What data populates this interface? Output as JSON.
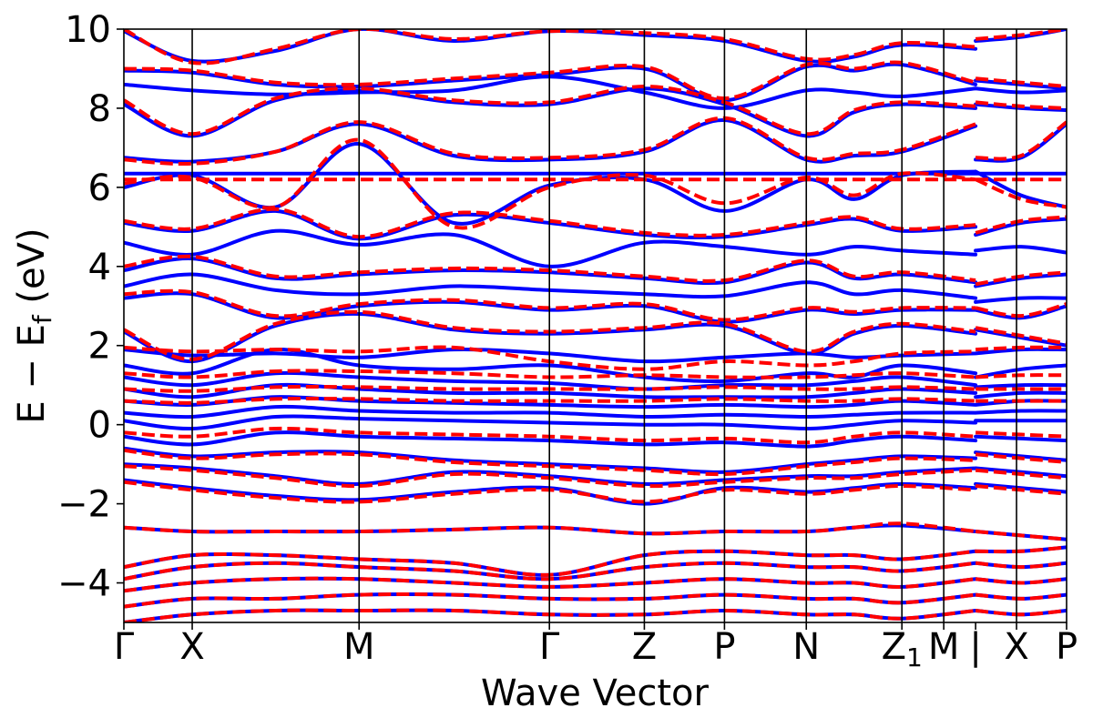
{
  "chart_data": {
    "type": "line",
    "title": "",
    "xlabel": "Wave Vector",
    "ylabel": "E − E",
    "ylabel_subscript": "f",
    "ylabel_unit": " (eV)",
    "ylim": [
      -5,
      10
    ],
    "yticks": [
      -4,
      -2,
      0,
      2,
      4,
      6,
      8,
      10
    ],
    "ytick_labels": [
      "−4",
      "−2",
      "0",
      "2",
      "4",
      "6",
      "8",
      "10"
    ],
    "xlim": [
      0,
      1
    ],
    "kpoints": [
      {
        "label": "Γ",
        "x": 0.0
      },
      {
        "label": "X",
        "x": 0.0725
      },
      {
        "label": "M",
        "x": 0.2495
      },
      {
        "label": "Γ",
        "x": 0.4514
      },
      {
        "label": "Z",
        "x": 0.5521
      },
      {
        "label": "P",
        "x": 0.6371
      },
      {
        "label": "N",
        "x": 0.7239
      },
      {
        "label": "Z",
        "label_subscript": "1",
        "x": 0.8253
      },
      {
        "label": "M",
        "x": 0.8697
      },
      {
        "label": "|",
        "x": 0.9035
      },
      {
        "label": "X",
        "x": 0.9469
      },
      {
        "label": "P",
        "x": 1.0
      }
    ],
    "x": [
      0.0,
      0.0725,
      0.161,
      0.2495,
      0.35,
      0.4514,
      0.5521,
      0.6371,
      0.7239,
      0.7746,
      0.8253,
      0.9035,
      0.9035,
      0.9517,
      1.0
    ],
    "segment_break_after_index": 11,
    "series": [
      {
        "style": "solid",
        "color": "#0000ff",
        "values": [
          9.95,
          9.2,
          9.45,
          10.0,
          9.7,
          9.95,
          9.85,
          9.7,
          9.2,
          9.3,
          9.6,
          9.5,
          9.7,
          9.8,
          10.0
        ]
      },
      {
        "style": "solid",
        "color": "#0000ff",
        "values": [
          8.95,
          8.9,
          8.6,
          8.55,
          8.7,
          8.85,
          9.0,
          8.2,
          9.05,
          8.95,
          9.1,
          8.6,
          8.7,
          8.6,
          8.5
        ]
      },
      {
        "style": "solid",
        "color": "#0000ff",
        "values": [
          8.6,
          8.45,
          8.35,
          8.4,
          8.45,
          8.8,
          8.4,
          8.0,
          8.45,
          8.4,
          8.3,
          8.5,
          8.5,
          8.4,
          8.45
        ]
      },
      {
        "style": "solid",
        "color": "#0000ff",
        "values": [
          8.1,
          7.3,
          8.2,
          8.45,
          8.15,
          8.1,
          8.5,
          8.1,
          7.3,
          7.9,
          8.1,
          8.0,
          8.1,
          8.0,
          7.95
        ]
      },
      {
        "style": "solid",
        "color": "#0000ff",
        "values": [
          6.75,
          6.65,
          6.9,
          7.6,
          6.8,
          6.7,
          6.9,
          7.7,
          6.7,
          6.8,
          6.9,
          7.55,
          6.7,
          6.75,
          7.6
        ]
      },
      {
        "style": "solid",
        "color": "#0000ff",
        "values": [
          6.35,
          6.35,
          6.35,
          6.35,
          6.35,
          6.35,
          6.35,
          6.35,
          6.35,
          6.35,
          6.35,
          6.35,
          6.35,
          6.35,
          6.35
        ]
      },
      {
        "style": "solid",
        "color": "#0000ff",
        "values": [
          6.0,
          6.3,
          5.5,
          7.1,
          5.1,
          6.05,
          6.2,
          5.4,
          6.2,
          5.7,
          6.3,
          6.4,
          6.4,
          5.8,
          5.5
        ]
      },
      {
        "style": "solid",
        "color": "#0000ff",
        "values": [
          5.1,
          4.9,
          5.4,
          4.7,
          5.3,
          5.1,
          4.8,
          4.75,
          5.05,
          5.2,
          4.9,
          5.0,
          4.8,
          5.1,
          5.2
        ]
      },
      {
        "style": "solid",
        "color": "#0000ff",
        "values": [
          4.6,
          4.3,
          4.9,
          4.55,
          4.8,
          4.0,
          4.6,
          4.5,
          4.3,
          4.5,
          4.4,
          4.3,
          4.4,
          4.5,
          4.35
        ]
      },
      {
        "style": "solid",
        "color": "#0000ff",
        "values": [
          3.9,
          4.2,
          3.7,
          3.8,
          3.9,
          3.85,
          3.7,
          3.6,
          4.1,
          3.7,
          3.8,
          3.6,
          3.5,
          3.7,
          3.8
        ]
      },
      {
        "style": "solid",
        "color": "#0000ff",
        "values": [
          3.5,
          3.8,
          3.4,
          3.3,
          3.5,
          3.4,
          3.3,
          3.25,
          3.6,
          3.3,
          3.4,
          3.2,
          3.1,
          3.2,
          3.2
        ]
      },
      {
        "style": "solid",
        "color": "#0000ff",
        "values": [
          3.2,
          3.3,
          2.7,
          3.0,
          3.1,
          2.9,
          3.0,
          2.6,
          2.9,
          2.8,
          2.9,
          2.9,
          2.9,
          2.7,
          3.0
        ]
      },
      {
        "style": "solid",
        "color": "#0000ff",
        "values": [
          2.35,
          1.6,
          2.5,
          2.8,
          2.4,
          2.3,
          2.4,
          2.5,
          1.8,
          2.3,
          2.5,
          2.3,
          2.4,
          2.2,
          2.0
        ]
      },
      {
        "style": "solid",
        "color": "#0000ff",
        "values": [
          1.9,
          1.75,
          1.8,
          1.7,
          1.9,
          1.8,
          1.6,
          1.7,
          1.8,
          1.7,
          1.75,
          1.8,
          1.8,
          1.9,
          1.9
        ]
      },
      {
        "style": "solid",
        "color": "#0000ff",
        "values": [
          1.5,
          1.3,
          1.9,
          1.5,
          1.4,
          1.5,
          1.2,
          1.1,
          1.3,
          1.2,
          1.5,
          1.3,
          1.2,
          1.4,
          1.5
        ]
      },
      {
        "style": "solid",
        "color": "#0000ff",
        "values": [
          1.2,
          1.0,
          1.3,
          1.2,
          1.1,
          1.05,
          0.9,
          1.0,
          1.0,
          1.1,
          1.2,
          1.0,
          0.95,
          1.0,
          1.0
        ]
      },
      {
        "style": "solid",
        "color": "#0000ff",
        "values": [
          0.9,
          0.7,
          1.0,
          0.9,
          0.8,
          0.8,
          0.7,
          0.7,
          0.7,
          0.8,
          0.9,
          0.8,
          0.7,
          0.8,
          0.8
        ]
      },
      {
        "style": "solid",
        "color": "#0000ff",
        "values": [
          0.6,
          0.5,
          0.7,
          0.6,
          0.55,
          0.5,
          0.45,
          0.5,
          0.45,
          0.5,
          0.6,
          0.5,
          0.5,
          0.6,
          0.6
        ]
      },
      {
        "style": "solid",
        "color": "#0000ff",
        "values": [
          0.3,
          0.2,
          0.45,
          0.35,
          0.3,
          0.3,
          0.2,
          0.25,
          0.2,
          0.25,
          0.3,
          0.3,
          0.3,
          0.35,
          0.35
        ]
      },
      {
        "style": "solid",
        "color": "#0000ff",
        "values": [
          0.1,
          -0.1,
          0.2,
          0.15,
          0.1,
          0.05,
          0.0,
          0.0,
          -0.1,
          0.0,
          0.1,
          0.05,
          0.1,
          0.1,
          0.1
        ]
      },
      {
        "style": "solid",
        "color": "#0000ff",
        "values": [
          -0.3,
          -0.5,
          -0.2,
          -0.3,
          -0.35,
          -0.4,
          -0.5,
          -0.45,
          -0.55,
          -0.4,
          -0.3,
          -0.4,
          -0.3,
          -0.35,
          -0.4
        ]
      },
      {
        "style": "solid",
        "color": "#0000ff",
        "values": [
          -0.6,
          -0.8,
          -0.7,
          -0.7,
          -0.9,
          -1.0,
          -1.1,
          -1.2,
          -1.0,
          -0.9,
          -0.8,
          -0.85,
          -0.7,
          -0.8,
          -0.9
        ]
      },
      {
        "style": "solid",
        "color": "#0000ff",
        "values": [
          -1.0,
          -1.1,
          -1.3,
          -1.5,
          -1.2,
          -1.3,
          -1.5,
          -1.4,
          -1.3,
          -1.3,
          -1.2,
          -1.1,
          -1.1,
          -1.2,
          -1.3
        ]
      },
      {
        "style": "solid",
        "color": "#0000ff",
        "values": [
          -1.4,
          -1.6,
          -1.8,
          -1.9,
          -1.7,
          -1.6,
          -2.0,
          -1.6,
          -1.7,
          -1.6,
          -1.5,
          -1.6,
          -1.5,
          -1.6,
          -1.7
        ]
      },
      {
        "style": "solid",
        "color": "#0000ff",
        "values": [
          -2.6,
          -2.7,
          -2.7,
          -2.7,
          -2.65,
          -2.6,
          -2.75,
          -2.7,
          -2.7,
          -2.6,
          -2.55,
          -2.7,
          -2.7,
          -2.8,
          -2.9
        ]
      },
      {
        "style": "solid",
        "color": "#0000ff",
        "values": [
          -3.6,
          -3.3,
          -3.3,
          -3.4,
          -3.5,
          -3.8,
          -3.3,
          -3.2,
          -3.3,
          -3.3,
          -3.4,
          -3.2,
          -3.2,
          -3.2,
          -3.1
        ]
      },
      {
        "style": "solid",
        "color": "#0000ff",
        "values": [
          -3.9,
          -3.6,
          -3.5,
          -3.6,
          -3.7,
          -3.9,
          -3.6,
          -3.5,
          -3.6,
          -3.6,
          -3.7,
          -3.5,
          -3.5,
          -3.6,
          -3.5
        ]
      },
      {
        "style": "solid",
        "color": "#0000ff",
        "values": [
          -4.2,
          -4.0,
          -3.9,
          -3.9,
          -4.0,
          -4.1,
          -4.0,
          -3.9,
          -4.0,
          -4.0,
          -4.1,
          -3.9,
          -3.9,
          -4.0,
          -3.9
        ]
      },
      {
        "style": "solid",
        "color": "#0000ff",
        "values": [
          -4.6,
          -4.4,
          -4.4,
          -4.3,
          -4.3,
          -4.4,
          -4.4,
          -4.3,
          -4.4,
          -4.4,
          -4.5,
          -4.3,
          -4.3,
          -4.4,
          -4.3
        ]
      },
      {
        "style": "solid",
        "color": "#0000ff",
        "values": [
          -5.0,
          -4.8,
          -4.7,
          -4.7,
          -4.7,
          -4.8,
          -4.8,
          -4.7,
          -4.8,
          -4.8,
          -4.9,
          -4.7,
          -4.7,
          -4.8,
          -4.7
        ]
      },
      {
        "style": "dashed",
        "color": "#ff0000",
        "values": [
          10.0,
          9.15,
          9.5,
          10.0,
          9.75,
          9.95,
          9.9,
          9.75,
          9.25,
          9.35,
          9.65,
          9.55,
          9.75,
          9.85,
          10.0
        ]
      },
      {
        "style": "dashed",
        "color": "#ff0000",
        "values": [
          9.0,
          8.95,
          8.65,
          8.6,
          8.75,
          8.9,
          9.05,
          8.25,
          9.1,
          9.0,
          9.15,
          8.65,
          8.75,
          8.65,
          8.55
        ]
      },
      {
        "style": "dashed",
        "color": "#ff0000",
        "values": [
          8.2,
          7.35,
          8.25,
          8.5,
          8.2,
          8.15,
          8.55,
          8.15,
          7.35,
          7.95,
          8.15,
          8.05,
          8.15,
          8.05,
          8.0
        ]
      },
      {
        "style": "dashed",
        "color": "#ff0000",
        "values": [
          6.7,
          6.6,
          6.9,
          7.65,
          6.85,
          6.75,
          6.95,
          7.75,
          6.75,
          6.85,
          6.95,
          7.6,
          6.75,
          6.8,
          7.65
        ]
      },
      {
        "style": "dashed",
        "color": "#ff0000",
        "values": [
          6.2,
          6.2,
          6.2,
          6.2,
          6.2,
          6.2,
          6.2,
          6.2,
          6.2,
          6.2,
          6.2,
          6.2,
          6.2,
          6.2,
          6.2
        ]
      },
      {
        "style": "dashed",
        "color": "#ff0000",
        "values": [
          6.1,
          6.25,
          5.5,
          7.2,
          5.0,
          6.0,
          6.3,
          5.6,
          6.25,
          5.8,
          6.35,
          6.2,
          6.2,
          5.7,
          5.5
        ]
      },
      {
        "style": "dashed",
        "color": "#ff0000",
        "values": [
          5.15,
          4.95,
          5.45,
          4.75,
          5.35,
          5.15,
          4.85,
          4.8,
          5.1,
          5.25,
          4.95,
          5.05,
          4.85,
          5.15,
          5.25
        ]
      },
      {
        "style": "dashed",
        "color": "#ff0000",
        "values": [
          4.0,
          4.25,
          3.75,
          3.85,
          3.95,
          3.9,
          3.75,
          3.65,
          4.15,
          3.75,
          3.85,
          3.65,
          3.55,
          3.75,
          3.85
        ]
      },
      {
        "style": "dashed",
        "color": "#ff0000",
        "values": [
          3.3,
          3.35,
          2.75,
          3.05,
          3.15,
          2.95,
          3.05,
          2.65,
          2.95,
          2.85,
          2.95,
          2.95,
          2.95,
          2.75,
          3.05
        ]
      },
      {
        "style": "dashed",
        "color": "#ff0000",
        "values": [
          2.4,
          1.65,
          2.55,
          2.85,
          2.45,
          2.35,
          2.45,
          2.55,
          1.85,
          2.35,
          2.55,
          2.35,
          2.45,
          2.25,
          2.05
        ]
      },
      {
        "style": "dashed",
        "color": "#ff0000",
        "values": [
          1.95,
          1.85,
          1.9,
          1.85,
          1.95,
          1.6,
          1.4,
          1.6,
          1.5,
          1.6,
          1.8,
          1.85,
          1.9,
          1.95,
          1.95
        ]
      },
      {
        "style": "dashed",
        "color": "#ff0000",
        "values": [
          1.3,
          1.2,
          1.35,
          1.35,
          1.3,
          1.2,
          1.25,
          1.2,
          1.2,
          1.25,
          1.3,
          1.2,
          1.2,
          1.25,
          1.25
        ]
      },
      {
        "style": "dashed",
        "color": "#ff0000",
        "values": [
          0.9,
          0.85,
          0.95,
          0.95,
          0.9,
          0.9,
          0.9,
          0.95,
          0.9,
          0.9,
          0.95,
          0.9,
          0.9,
          0.9,
          0.9
        ]
      },
      {
        "style": "dashed",
        "color": "#ff0000",
        "values": [
          0.6,
          0.55,
          0.65,
          0.65,
          0.6,
          0.6,
          0.6,
          0.65,
          0.6,
          0.6,
          0.65,
          0.6,
          0.6,
          0.6,
          0.6
        ]
      },
      {
        "style": "dashed",
        "color": "#ff0000",
        "values": [
          -0.2,
          -0.3,
          -0.1,
          -0.2,
          -0.25,
          -0.3,
          -0.4,
          -0.35,
          -0.45,
          -0.3,
          -0.2,
          -0.3,
          -0.2,
          -0.25,
          -0.3
        ]
      },
      {
        "style": "dashed",
        "color": "#ff0000",
        "values": [
          -0.65,
          -0.85,
          -0.75,
          -0.75,
          -0.95,
          -1.05,
          -1.15,
          -1.25,
          -1.05,
          -0.95,
          -0.85,
          -0.9,
          -0.75,
          -0.85,
          -0.95
        ]
      },
      {
        "style": "dashed",
        "color": "#ff0000",
        "values": [
          -1.05,
          -1.15,
          -1.35,
          -1.55,
          -1.25,
          -1.35,
          -1.55,
          -1.45,
          -1.35,
          -1.35,
          -1.25,
          -1.15,
          -1.15,
          -1.25,
          -1.35
        ]
      },
      {
        "style": "dashed",
        "color": "#ff0000",
        "values": [
          -1.45,
          -1.65,
          -1.85,
          -1.95,
          -1.75,
          -1.65,
          -1.95,
          -1.65,
          -1.75,
          -1.65,
          -1.55,
          -1.65,
          -1.55,
          -1.65,
          -1.75
        ]
      },
      {
        "style": "dashed",
        "color": "#ff0000",
        "values": [
          -2.6,
          -2.7,
          -2.7,
          -2.7,
          -2.65,
          -2.6,
          -2.75,
          -2.7,
          -2.7,
          -2.6,
          -2.5,
          -2.7,
          -2.7,
          -2.8,
          -2.9
        ]
      },
      {
        "style": "dashed",
        "color": "#ff0000",
        "values": [
          -3.6,
          -3.3,
          -3.3,
          -3.4,
          -3.5,
          -3.8,
          -3.3,
          -3.2,
          -3.3,
          -3.3,
          -3.4,
          -3.2,
          -3.2,
          -3.2,
          -3.1
        ]
      },
      {
        "style": "dashed",
        "color": "#ff0000",
        "values": [
          -3.9,
          -3.6,
          -3.5,
          -3.6,
          -3.7,
          -3.9,
          -3.6,
          -3.5,
          -3.6,
          -3.6,
          -3.7,
          -3.5,
          -3.5,
          -3.6,
          -3.5
        ]
      },
      {
        "style": "dashed",
        "color": "#ff0000",
        "values": [
          -4.2,
          -4.0,
          -3.9,
          -3.9,
          -4.0,
          -4.1,
          -4.0,
          -3.9,
          -4.0,
          -4.0,
          -4.1,
          -3.9,
          -3.9,
          -4.0,
          -3.9
        ]
      },
      {
        "style": "dashed",
        "color": "#ff0000",
        "values": [
          -4.6,
          -4.4,
          -4.4,
          -4.3,
          -4.3,
          -4.4,
          -4.4,
          -4.3,
          -4.4,
          -4.4,
          -4.5,
          -4.3,
          -4.3,
          -4.4,
          -4.3
        ]
      },
      {
        "style": "dashed",
        "color": "#ff0000",
        "values": [
          -5.0,
          -4.8,
          -4.7,
          -4.7,
          -4.7,
          -4.8,
          -4.8,
          -4.7,
          -4.8,
          -4.8,
          -4.9,
          -4.7,
          -4.7,
          -4.8,
          -4.7
        ]
      }
    ],
    "grid": false,
    "legend": "none"
  }
}
